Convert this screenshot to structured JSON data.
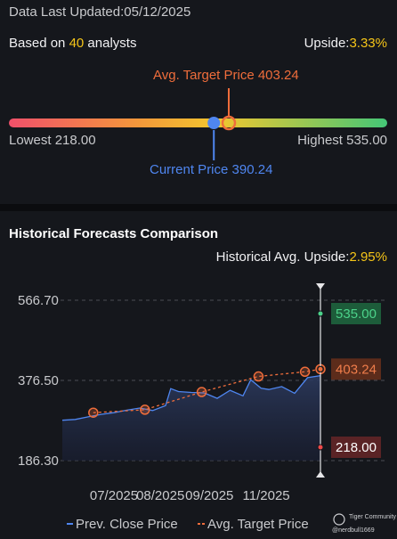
{
  "header": {
    "updated_label": "Data Last Updated:",
    "updated_date": "05/12/2025",
    "based_prefix": "Based on ",
    "analysts_count": "40",
    "based_suffix": " analysts",
    "upside_label": "Upside:",
    "upside_value": "3.33%"
  },
  "range": {
    "avg_target_label": "Avg. Target Price 403.24",
    "lowest_label": "Lowest 218.00",
    "highest_label": "Highest 535.00",
    "current_label": "Current Price 390.24",
    "low": 218.0,
    "high": 535.0,
    "current": 390.24,
    "avg_target": 403.24,
    "colors": {
      "current": "#4f86f0",
      "target": "#ef6d3b"
    }
  },
  "history": {
    "title": "Historical Forecasts Comparison",
    "upside_label": "Historical Avg. Upside:",
    "upside_value": "2.95%"
  },
  "chart_data": {
    "type": "line",
    "y_ticks": [
      "566.70",
      "376.50",
      "186.30"
    ],
    "ylim": [
      186.3,
      566.7
    ],
    "x_ticks": [
      "07/2025",
      "08/2025",
      "09/2025",
      "11/2025"
    ],
    "x_tick_pos": [
      2,
      3.8,
      5.7,
      7.9
    ],
    "x_range": [
      0,
      10
    ],
    "series": [
      {
        "name": "Prev. Close Price",
        "color": "#4f86f0",
        "x": [
          0,
          0.5,
          1,
          1.5,
          2,
          2.5,
          3,
          3.5,
          4,
          4.2,
          4.5,
          5,
          5.5,
          6,
          6.5,
          7,
          7.3,
          7.7,
          8,
          8.5,
          9,
          9.5,
          10
        ],
        "y": [
          282,
          284,
          290,
          296,
          300,
          306,
          311,
          305,
          317,
          357,
          350,
          348,
          347,
          334,
          353,
          340,
          378,
          358,
          355,
          362,
          346,
          383,
          388
        ]
      },
      {
        "name": "Avg. Target Price",
        "color": "#ef6d3b",
        "x": [
          1.2,
          3.2,
          5.4,
          7.6,
          9.4,
          10
        ],
        "y": [
          300,
          307,
          349,
          386,
          397,
          403.24
        ]
      }
    ],
    "end_badges": [
      {
        "label": "535.00",
        "value": 535.0,
        "color": "#4cd38a",
        "bg": "#1d5c3a"
      },
      {
        "label": "403.24",
        "value": 403.24,
        "color": "#ef7d4b",
        "bg": "#5c2c1b"
      },
      {
        "label": "218.00",
        "value": 218.0,
        "color": "#ffffff",
        "bg": "#5a2325"
      }
    ],
    "legend": [
      "Prev. Close Price",
      "Avg. Target Price"
    ]
  },
  "watermark": {
    "brand": "Tiger Community",
    "handle": "@nerdbull1669"
  }
}
